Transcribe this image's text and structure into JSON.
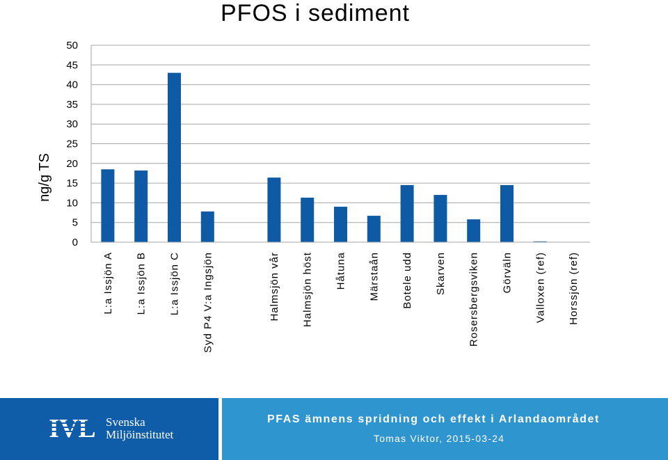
{
  "chart_data": {
    "type": "bar",
    "title": "PFOS i sediment",
    "ylabel": "ng/g TS",
    "xlabel": "",
    "ylim": [
      0,
      50
    ],
    "yticks": [
      0,
      5,
      10,
      15,
      20,
      25,
      30,
      35,
      40,
      45,
      50
    ],
    "grid": true,
    "legend": "none",
    "bar_color": "#0f5aa5",
    "categories": [
      "L:a Issjön A",
      "L:a Issjön B",
      "L:a Issjön C",
      "Syd P4 V:a Ingsjön",
      "",
      "Halmsjön vår",
      "Halmsjön höst",
      "Håtuna",
      "Märstaån",
      "Botele udd",
      "Skarven",
      "Rosersbergsviken",
      "Görväln",
      "Valloxen (ref)",
      "Horssjön (ref)"
    ],
    "values": [
      18.5,
      18.2,
      43,
      7.8,
      null,
      16.4,
      11.3,
      9.0,
      6.7,
      14.5,
      12.0,
      5.8,
      14.5,
      0.2,
      0
    ]
  },
  "footer": {
    "logo_ivl": "IVL",
    "logo_line1": "Svenska",
    "logo_line2": "Miljöinstitutet",
    "title": "PFAS ämnens spridning och effekt i Arlandaområdet",
    "author": "Tomas Viktor, 2015-03-24",
    "colors": {
      "left": "#0f5da8",
      "right": "#2f95cf"
    }
  }
}
